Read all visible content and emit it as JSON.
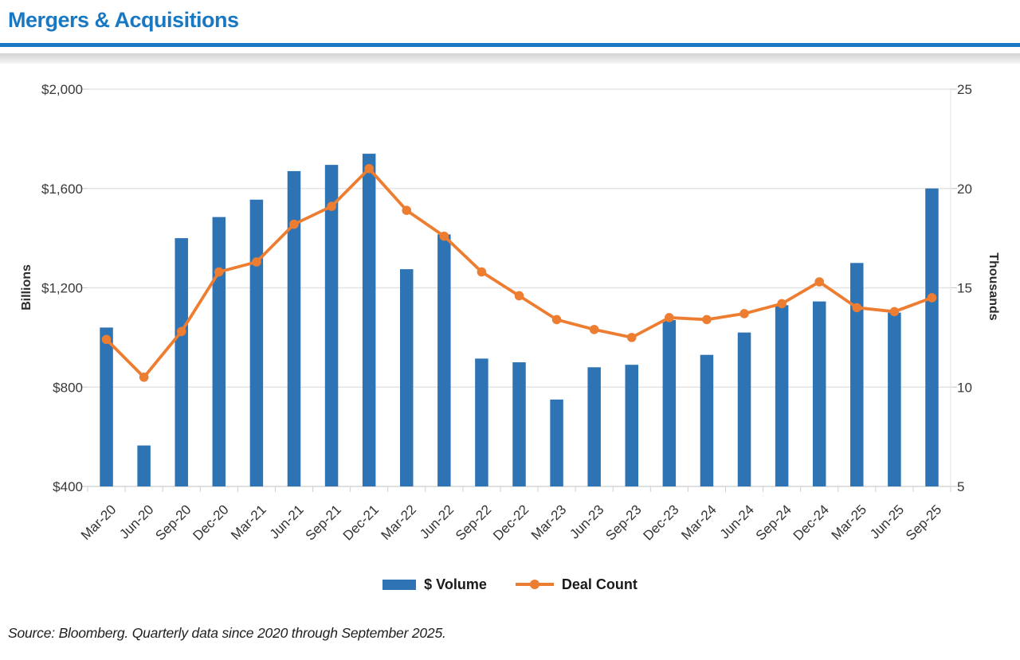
{
  "header": {
    "title": "Mergers & Acquisitions",
    "accent_color": "#1878C2"
  },
  "chart_data": {
    "type": "bar",
    "title": "Mergers & Acquisitions",
    "categories": [
      "Mar-20",
      "Jun-20",
      "Sep-20",
      "Dec-20",
      "Mar-21",
      "Jun-21",
      "Sep-21",
      "Dec-21",
      "Mar-22",
      "Jun-22",
      "Sep-22",
      "Dec-22",
      "Mar-23",
      "Jun-23",
      "Sep-23",
      "Dec-23",
      "Mar-24",
      "Jun-24",
      "Sep-24",
      "Dec-24",
      "Mar-25",
      "Jun-25",
      "Sep-25"
    ],
    "series": [
      {
        "name": "$ Volume",
        "type": "bar",
        "axis": "left",
        "color": "#2E74B5",
        "values": [
          1040,
          565,
          1400,
          1485,
          1555,
          1670,
          1695,
          1740,
          1275,
          1415,
          915,
          900,
          750,
          880,
          890,
          1070,
          930,
          1020,
          1130,
          1145,
          1300,
          1100,
          1600
        ]
      },
      {
        "name": "Deal Count",
        "type": "line",
        "axis": "right",
        "color": "#ED7D31",
        "values": [
          12.4,
          10.5,
          12.8,
          15.8,
          16.3,
          18.2,
          19.1,
          21.0,
          18.9,
          17.6,
          15.8,
          14.6,
          13.4,
          12.9,
          12.5,
          13.5,
          13.4,
          13.7,
          14.2,
          15.3,
          14.0,
          13.8,
          14.5
        ]
      }
    ],
    "left_axis": {
      "title": "Billions",
      "tick_labels": [
        "$2,000",
        "$1,600",
        "$1,200",
        "$800",
        "$400"
      ],
      "tick_values": [
        2000,
        1600,
        1200,
        800,
        400
      ],
      "min": 400,
      "max": 2000
    },
    "right_axis": {
      "title": "Thousands",
      "tick_labels": [
        "25",
        "20",
        "15",
        "10",
        "5"
      ],
      "tick_values": [
        25,
        20,
        15,
        10,
        5
      ],
      "min": 5,
      "max": 25
    },
    "grid": true,
    "legend_position": "bottom"
  },
  "legend": {
    "volume_label": "$ Volume",
    "deal_count_label": "Deal Count"
  },
  "source": {
    "text": "Source: Bloomberg. Quarterly data since 2020 through September 2025."
  }
}
